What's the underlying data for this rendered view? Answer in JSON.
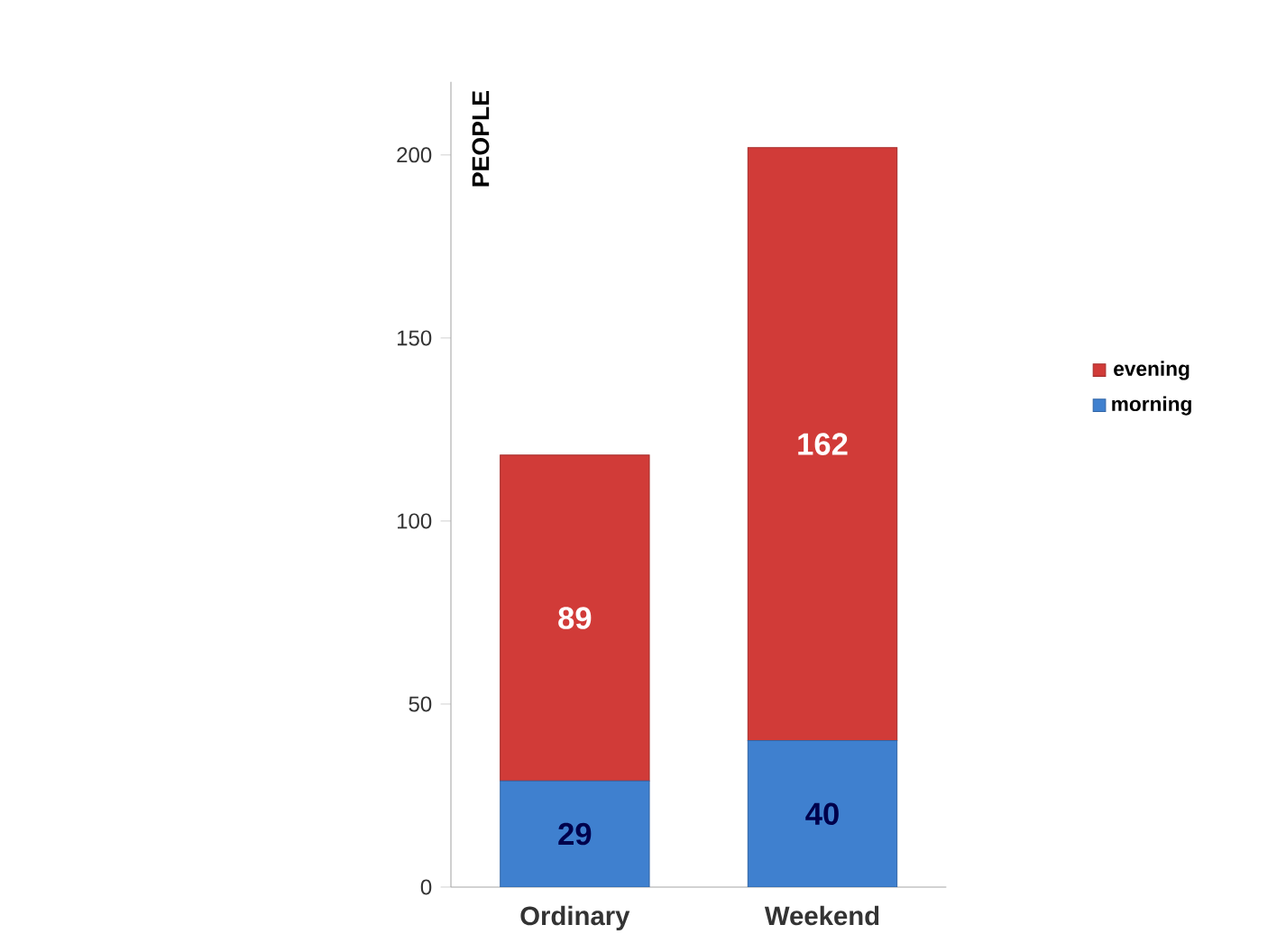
{
  "chart_data": {
    "type": "bar",
    "stacked": true,
    "ylabel": "PEOPLE",
    "categories": [
      "Ordinary",
      "Weekend"
    ],
    "series": [
      {
        "name": "morning",
        "color": "#3f80cf",
        "values": [
          29,
          40
        ],
        "value_labels": [
          "29",
          "40"
        ]
      },
      {
        "name": "evening",
        "color": "#d13b38",
        "values": [
          89,
          162
        ],
        "value_labels": [
          "89",
          "162"
        ]
      }
    ],
    "ylim": [
      0,
      220
    ],
    "yticks": [
      0,
      50,
      100,
      150,
      200
    ],
    "legend": "right",
    "grid": false
  }
}
